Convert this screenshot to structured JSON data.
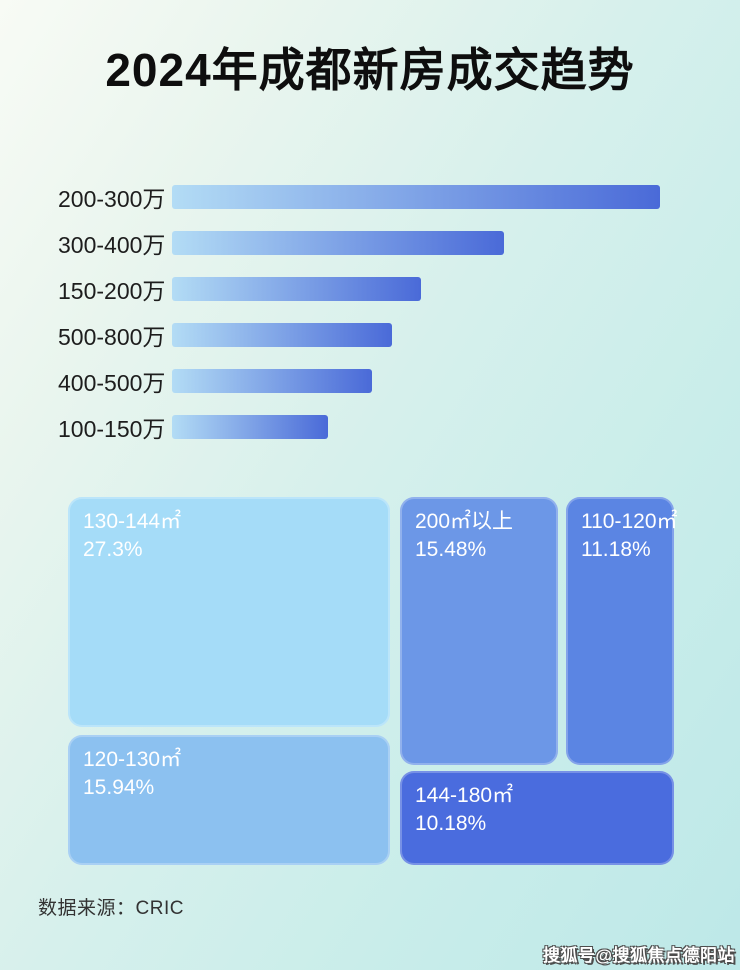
{
  "page": {
    "title": "2024年成都新房成交趋势"
  },
  "colors": {
    "background_top_left": "#f8fbf5",
    "background_bottom_right": "#bde8e8",
    "bar_gradient_start": "#b3dcf5",
    "bar_gradient_end": "#4a6ad8",
    "label_text": "#1d1d1d",
    "block_text": "#ffffff"
  },
  "bar_chart": {
    "rows": [
      {
        "label": "200-300万",
        "width_pct": 100
      },
      {
        "label": "300-400万",
        "width_pct": 68
      },
      {
        "label": "150-200万",
        "width_pct": 51
      },
      {
        "label": "500-800万",
        "width_pct": 45
      },
      {
        "label": "400-500万",
        "width_pct": 41
      },
      {
        "label": "100-150万",
        "width_pct": 32
      }
    ]
  },
  "treemap": {
    "blocks": [
      {
        "label": "130-144㎡",
        "value": "27.3%",
        "color": "#a5dcf8"
      },
      {
        "label": "120-130㎡",
        "value": "15.94%",
        "color": "#8cc1f0"
      },
      {
        "label": "200㎡以上",
        "value": "15.48%",
        "color": "#6c97e7"
      },
      {
        "label": "110-120㎡",
        "value": "11.18%",
        "color": "#5b85e3"
      },
      {
        "label": "144-180㎡",
        "value": "10.18%",
        "color": "#4a6cde"
      }
    ]
  },
  "footer": {
    "source": "数据来源：CRIC"
  },
  "watermark": {
    "text": "搜狐号@搜狐焦点德阳站"
  },
  "chart_data": [
    {
      "type": "bar",
      "orientation": "horizontal",
      "title": "2024年成都新房成交趋势",
      "categories": [
        "200-300万",
        "300-400万",
        "150-200万",
        "500-800万",
        "400-500万",
        "100-150万"
      ],
      "values": [
        100,
        68,
        51,
        45,
        41,
        32
      ],
      "value_unit": "percent of longest bar (estimated from pixel lengths; no numeric labels shown)",
      "xlabel": "",
      "ylabel": "",
      "grid": false,
      "legend": false
    },
    {
      "type": "treemap",
      "title": "",
      "items": [
        {
          "label": "130-144㎡",
          "value": 27.3
        },
        {
          "label": "120-130㎡",
          "value": 15.94
        },
        {
          "label": "200㎡以上",
          "value": 15.48
        },
        {
          "label": "110-120㎡",
          "value": 11.18
        },
        {
          "label": "144-180㎡",
          "value": 10.18
        }
      ],
      "value_unit": "%"
    }
  ]
}
